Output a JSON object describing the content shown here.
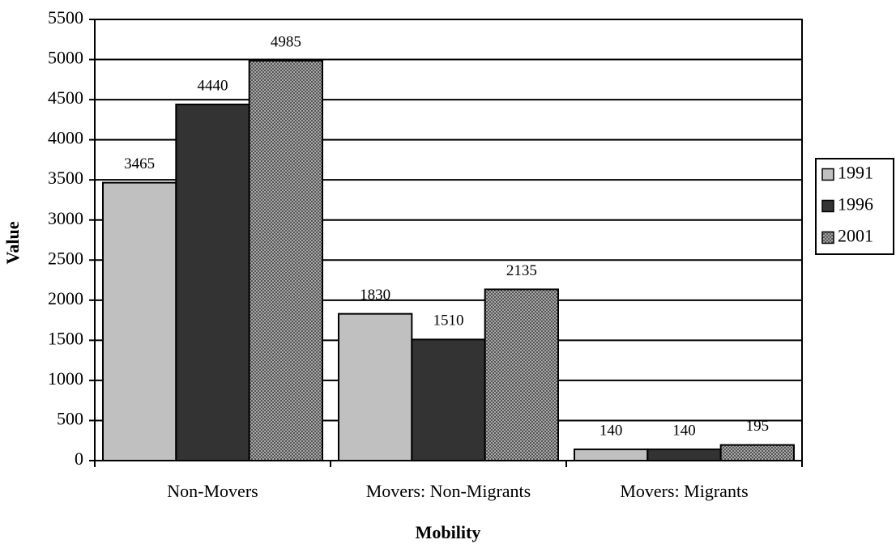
{
  "chart_data": {
    "type": "bar",
    "x_label": "Mobility",
    "y_label": "Value",
    "categories": [
      "Non-Movers",
      "Movers: Non-Migrants",
      "Movers: Migrants"
    ],
    "series": [
      {
        "name": "1991",
        "color": "#c0c0c0",
        "values": [
          3465,
          1830,
          140
        ]
      },
      {
        "name": "1996",
        "color": "#333333",
        "values": [
          4440,
          1510,
          140
        ]
      },
      {
        "name": "2001",
        "color": "#a8a8a8",
        "hatch": true,
        "values": [
          4985,
          2135,
          195
        ]
      }
    ],
    "ylim": [
      0,
      5500
    ],
    "yticks": [
      0,
      500,
      1000,
      1500,
      2000,
      2500,
      3000,
      3500,
      4000,
      4500,
      5000,
      5500
    ],
    "grid": true,
    "legend": "right"
  }
}
